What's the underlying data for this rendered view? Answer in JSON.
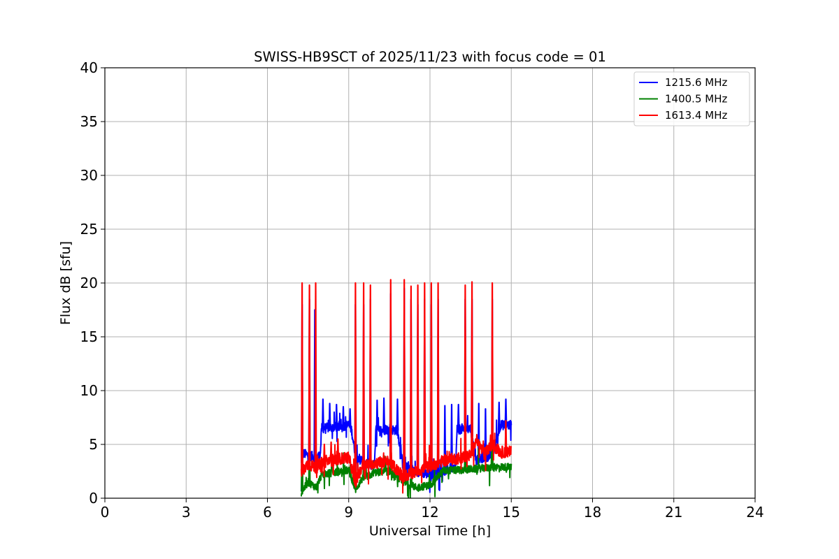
{
  "chart_data": {
    "type": "line",
    "title": "SWISS-HB9SCT of 2025/11/23 with focus code = 01",
    "xlabel": "Universal Time [h]",
    "ylabel": "Flux dB [sfu]",
    "xlim": [
      0,
      24
    ],
    "ylim": [
      0,
      40
    ],
    "xticks": [
      0,
      3,
      6,
      9,
      12,
      15,
      18,
      21,
      24
    ],
    "yticks": [
      0,
      5,
      10,
      15,
      20,
      25,
      30,
      35,
      40
    ],
    "grid": true,
    "legend_position": "top-right",
    "data_start": 7.25,
    "data_end": 15.0,
    "series": [
      {
        "name": "1215.6 MHz",
        "color": "#0000ff",
        "x": [
          7.25,
          7.29,
          7.5,
          7.8,
          7.95,
          8.0,
          8.5,
          9.0,
          9.1,
          9.25,
          9.5,
          9.8,
          9.95,
          10.0,
          10.5,
          10.8,
          11.0,
          11.5,
          12.0,
          12.5,
          12.95,
          13.0,
          13.2,
          13.5,
          13.7,
          14.0,
          14.3,
          14.6,
          15.0
        ],
        "y": [
          0.5,
          4.2,
          4.0,
          3.8,
          4.0,
          6.5,
          6.6,
          6.8,
          6.4,
          4.0,
          3.5,
          3.0,
          3.2,
          6.3,
          6.4,
          6.3,
          3.0,
          2.5,
          2.2,
          2.5,
          3.0,
          6.4,
          6.4,
          6.5,
          3.5,
          3.8,
          4.0,
          6.8,
          6.8
        ],
        "spikes": [
          {
            "x": 7.28,
            "y": 18.0
          },
          {
            "x": 7.55,
            "y": 18.5
          },
          {
            "x": 7.75,
            "y": 17.5
          },
          {
            "x": 8.05,
            "y": 9.2
          },
          {
            "x": 8.3,
            "y": 8.8
          },
          {
            "x": 8.55,
            "y": 8.7
          },
          {
            "x": 8.8,
            "y": 8.5
          },
          {
            "x": 9.05,
            "y": 8.3
          },
          {
            "x": 9.25,
            "y": 18.0
          },
          {
            "x": 9.55,
            "y": 18.0
          },
          {
            "x": 9.8,
            "y": 18.5
          },
          {
            "x": 10.05,
            "y": 9.1
          },
          {
            "x": 10.3,
            "y": 9.3
          },
          {
            "x": 10.55,
            "y": 19.0
          },
          {
            "x": 10.8,
            "y": 9.2
          },
          {
            "x": 11.05,
            "y": 19.5
          },
          {
            "x": 11.3,
            "y": 18.5
          },
          {
            "x": 11.55,
            "y": 18.0
          },
          {
            "x": 11.8,
            "y": 18.5
          },
          {
            "x": 12.05,
            "y": 18.0
          },
          {
            "x": 12.3,
            "y": 18.5
          },
          {
            "x": 12.55,
            "y": 8.6
          },
          {
            "x": 12.8,
            "y": 8.7
          },
          {
            "x": 13.05,
            "y": 8.7
          },
          {
            "x": 13.3,
            "y": 18.5
          },
          {
            "x": 13.55,
            "y": 18.5
          },
          {
            "x": 13.8,
            "y": 8.8
          },
          {
            "x": 14.05,
            "y": 8.3
          },
          {
            "x": 14.3,
            "y": 18.5
          },
          {
            "x": 14.55,
            "y": 8.9
          },
          {
            "x": 14.8,
            "y": 9.2
          }
        ]
      },
      {
        "name": "1400.5 MHz",
        "color": "#008000",
        "x": [
          7.25,
          7.5,
          7.8,
          8.0,
          8.5,
          9.0,
          9.25,
          9.5,
          10.0,
          10.5,
          11.0,
          11.5,
          12.0,
          12.5,
          13.0,
          13.5,
          14.0,
          14.5,
          15.0
        ],
        "y": [
          0.5,
          1.5,
          1.0,
          2.2,
          2.4,
          2.6,
          0.8,
          1.8,
          2.4,
          2.5,
          1.5,
          1.0,
          1.2,
          2.6,
          2.6,
          2.7,
          2.8,
          2.9,
          2.9
        ],
        "spikes": [
          {
            "x": 7.28,
            "y": 13.0
          },
          {
            "x": 7.55,
            "y": 12.0
          },
          {
            "x": 9.25,
            "y": 12.5
          },
          {
            "x": 10.55,
            "y": 13.0
          },
          {
            "x": 11.05,
            "y": 13.0
          },
          {
            "x": 13.3,
            "y": 12.0
          },
          {
            "x": 14.3,
            "y": 12.0
          }
        ]
      },
      {
        "name": "1613.4 MHz",
        "color": "#ff0000",
        "x": [
          7.25,
          7.5,
          7.8,
          8.0,
          8.5,
          9.0,
          9.25,
          9.5,
          10.0,
          10.5,
          11.0,
          11.5,
          12.0,
          12.5,
          13.0,
          13.5,
          13.7,
          14.0,
          14.3,
          14.6,
          15.0
        ],
        "y": [
          2.5,
          3.2,
          2.8,
          3.3,
          3.6,
          3.8,
          1.5,
          3.0,
          3.3,
          3.4,
          2.0,
          2.5,
          3.0,
          3.5,
          3.7,
          4.0,
          5.5,
          4.1,
          5.0,
          4.3,
          4.3
        ],
        "spikes": [
          {
            "x": 7.28,
            "y": 20.0
          },
          {
            "x": 7.55,
            "y": 19.8
          },
          {
            "x": 7.78,
            "y": 20.0
          },
          {
            "x": 8.1,
            "y": 5.0
          },
          {
            "x": 8.35,
            "y": 5.2
          },
          {
            "x": 8.6,
            "y": 5.5
          },
          {
            "x": 9.25,
            "y": 20.0
          },
          {
            "x": 9.55,
            "y": 20.0
          },
          {
            "x": 9.8,
            "y": 19.8
          },
          {
            "x": 10.55,
            "y": 20.3
          },
          {
            "x": 11.05,
            "y": 20.3
          },
          {
            "x": 11.3,
            "y": 19.7
          },
          {
            "x": 11.55,
            "y": 19.8
          },
          {
            "x": 11.8,
            "y": 20.0
          },
          {
            "x": 12.05,
            "y": 20.0
          },
          {
            "x": 12.3,
            "y": 20.0
          },
          {
            "x": 13.3,
            "y": 19.8
          },
          {
            "x": 13.55,
            "y": 20.1
          },
          {
            "x": 14.3,
            "y": 20.0
          },
          {
            "x": 14.8,
            "y": 7.2
          }
        ]
      }
    ]
  }
}
